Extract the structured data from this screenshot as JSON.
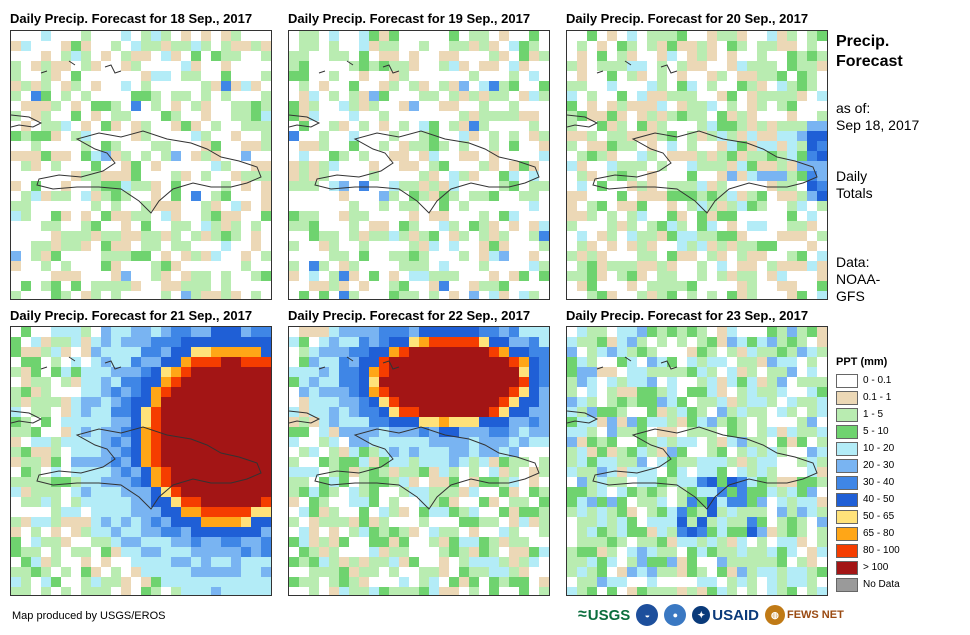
{
  "panels": [
    {
      "title": "Daily Precip. Forecast for 18 Sep., 2017",
      "scenario": "light_scattered"
    },
    {
      "title": "Daily Precip. Forecast for 19 Sep., 2017",
      "scenario": "light_scattered"
    },
    {
      "title": "Daily Precip. Forecast for 20 Sep., 2017",
      "scenario": "east_edge"
    },
    {
      "title": "Daily Precip. Forecast for 21 Sep., 2017",
      "scenario": "storm_east"
    },
    {
      "title": "Daily Precip. Forecast for 22 Sep., 2017",
      "scenario": "storm_north"
    },
    {
      "title": "Daily Precip. Forecast for 23 Sep., 2017",
      "scenario": "moderate"
    }
  ],
  "side": {
    "title_line1": "Precip.",
    "title_line2": "Forecast",
    "asof_label": "as of:",
    "asof_date": "Sep 18, 2017",
    "totals_line1": "Daily",
    "totals_line2": "Totals",
    "data_line1": "Data:",
    "data_line2": "NOAA-",
    "data_line3": "GFS"
  },
  "legend": {
    "title": "PPT (mm)",
    "items": [
      {
        "label": "0 - 0.1",
        "color": "#ffffff"
      },
      {
        "label": "0.1 - 1",
        "color": "#ecd8b6"
      },
      {
        "label": "1 - 5",
        "color": "#b9ecb1"
      },
      {
        "label": "5 - 10",
        "color": "#6fd36f"
      },
      {
        "label": "10 - 20",
        "color": "#b3ecf7"
      },
      {
        "label": "20 - 30",
        "color": "#79b4f2"
      },
      {
        "label": "30 - 40",
        "color": "#3f86e6"
      },
      {
        "label": "40 - 50",
        "color": "#1f5fd6"
      },
      {
        "label": "50 - 65",
        "color": "#ffe27a"
      },
      {
        "label": "65 - 80",
        "color": "#ffa617"
      },
      {
        "label": "80 - 100",
        "color": "#f53d00"
      },
      {
        "label": "> 100",
        "color": "#a31515"
      },
      {
        "label": "No Data",
        "color": "#9a9a9a"
      }
    ]
  },
  "footer": {
    "credit": "Map produced by USGS/EROS",
    "logo_usgs": "USGS",
    "logo_usaid": "USAID",
    "logo_fewsnet": "FEWS NET"
  }
}
